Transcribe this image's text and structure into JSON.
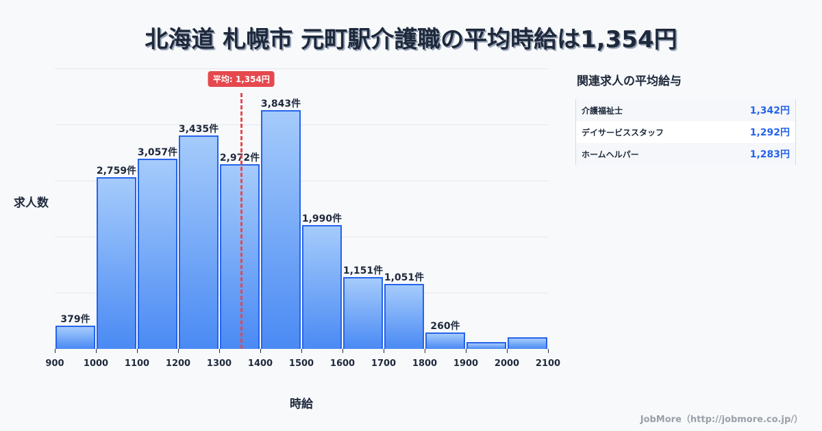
{
  "title": "北海道 札幌市 元町駅介護職の平均時給は1,354円",
  "chart_data": {
    "type": "bar",
    "title": "北海道 札幌市 元町駅介護職の平均時給は1,354円",
    "xlabel": "時給",
    "ylabel": "求人数",
    "bins": [
      900,
      1000,
      1100,
      1200,
      1300,
      1400,
      1500,
      1600,
      1700,
      1800,
      1900,
      2000,
      2100
    ],
    "categories": [
      "900-1000",
      "1000-1100",
      "1100-1200",
      "1200-1300",
      "1300-1400",
      "1400-1500",
      "1500-1600",
      "1600-1700",
      "1700-1800",
      "1800-1900",
      "1900-2000",
      "2000-2100"
    ],
    "values": [
      379,
      2759,
      3057,
      3435,
      2972,
      3843,
      1990,
      1151,
      1051,
      260,
      110,
      187
    ],
    "labels": [
      "379件",
      "2,759件",
      "3,057件",
      "3,435件",
      "2,972件",
      "3,843件",
      "1,990件",
      "1,151件",
      "1,051件",
      "260件",
      "",
      ""
    ],
    "x_ticks": [
      "900",
      "1000",
      "1100",
      "1200",
      "1300",
      "1400",
      "1500",
      "1600",
      "1700",
      "1800",
      "1900",
      "2000",
      "2100"
    ],
    "ylim": [
      0,
      4515
    ],
    "grid": true,
    "average": {
      "value": 1354,
      "label": "平均: 1,354円"
    }
  },
  "side_panel": {
    "title": "関連求人の平均給与",
    "rows": [
      {
        "name": "介護福祉士",
        "value": "1,342円"
      },
      {
        "name": "デイサービススタッフ",
        "value": "1,292円"
      },
      {
        "name": "ホームヘルパー",
        "value": "1,283円"
      }
    ]
  },
  "footer": "JobMore（http://jobmore.co.jp/）",
  "colors": {
    "bar_border": "#2563eb",
    "bar_top": "#a5cbfb",
    "bar_bottom": "#4a8af4",
    "average": "#e5484d",
    "accent_value": "#2563eb"
  }
}
